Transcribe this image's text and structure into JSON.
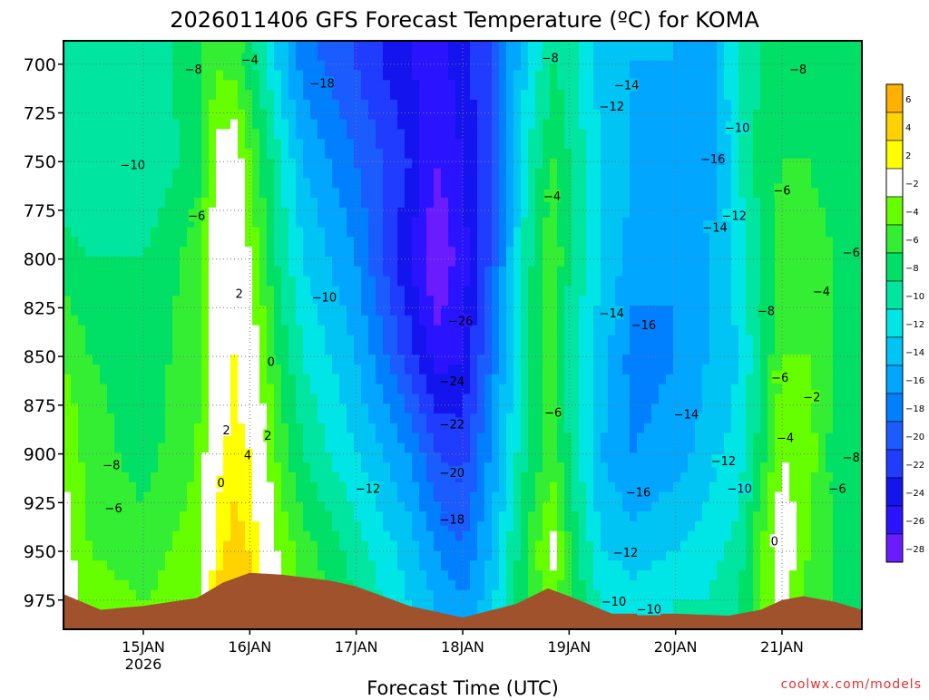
{
  "chart_data": {
    "type": "heatmap",
    "title": "2026011406 GFS Forecast Temperature (ºC) for KOMA",
    "xlabel": "Forecast Time (UTC)",
    "ylabel": "",
    "credit": "coolwx.com/models",
    "x_ticks": [
      {
        "label": "15JAN",
        "sublabel": "2026",
        "t": 15.0
      },
      {
        "label": "16JAN",
        "sublabel": "",
        "t": 16.0
      },
      {
        "label": "17JAN",
        "sublabel": "",
        "t": 17.0
      },
      {
        "label": "18JAN",
        "sublabel": "",
        "t": 18.0
      },
      {
        "label": "19JAN",
        "sublabel": "",
        "t": 19.0
      },
      {
        "label": "20JAN",
        "sublabel": "",
        "t": 20.0
      },
      {
        "label": "21JAN",
        "sublabel": "",
        "t": 21.0
      }
    ],
    "xlim": [
      14.25,
      21.75
    ],
    "y_ticks": [
      700,
      725,
      750,
      775,
      800,
      825,
      850,
      875,
      900,
      925,
      950,
      975
    ],
    "ylim": [
      688,
      990
    ],
    "y_reversed": true,
    "colorbar": {
      "levels": [
        6,
        4,
        2,
        -2,
        -4,
        -6,
        -8,
        -10,
        -12,
        -14,
        -16,
        -18,
        -20,
        -22,
        -24,
        -26,
        -28
      ],
      "colors": [
        "#ffb000",
        "#ffd200",
        "#ffff00",
        "#ffffff",
        "#66ff00",
        "#33ee33",
        "#00e066",
        "#00e6a0",
        "#00e6e6",
        "#00c4f4",
        "#00a6ff",
        "#0080ff",
        "#1a5cff",
        "#1f3cff",
        "#1414ee",
        "#2a14ff",
        "#6a1cff"
      ]
    },
    "temperature_columns": [
      {
        "t": 14.25,
        "p": [
          [
            700,
            -10
          ],
          [
            750,
            -10
          ],
          [
            800,
            -7
          ],
          [
            850,
            -4
          ],
          [
            900,
            -2
          ],
          [
            950,
            -1
          ],
          [
            975,
            0
          ]
        ]
      },
      {
        "t": 14.5,
        "p": [
          [
            700,
            -9
          ],
          [
            750,
            -10
          ],
          [
            800,
            -8
          ],
          [
            850,
            -6
          ],
          [
            900,
            -5
          ],
          [
            950,
            -4
          ],
          [
            975,
            -3
          ]
        ]
      },
      {
        "t": 15.0,
        "p": [
          [
            700,
            -9
          ],
          [
            750,
            -10
          ],
          [
            800,
            -8
          ],
          [
            850,
            -7
          ],
          [
            900,
            -7
          ],
          [
            950,
            -5
          ],
          [
            975,
            -4
          ]
        ]
      },
      {
        "t": 15.5,
        "p": [
          [
            700,
            -7
          ],
          [
            750,
            -7
          ],
          [
            800,
            -5
          ],
          [
            850,
            -5
          ],
          [
            900,
            -4
          ],
          [
            950,
            -3
          ],
          [
            975,
            -3
          ]
        ]
      },
      {
        "t": 15.7,
        "p": [
          [
            700,
            -4
          ],
          [
            750,
            -1
          ],
          [
            800,
            0
          ],
          [
            850,
            1
          ],
          [
            900,
            1
          ],
          [
            950,
            3
          ],
          [
            975,
            5
          ]
        ]
      },
      {
        "t": 15.85,
        "p": [
          [
            700,
            -5
          ],
          [
            750,
            0
          ],
          [
            800,
            2
          ],
          [
            850,
            2
          ],
          [
            900,
            3
          ],
          [
            950,
            5
          ],
          [
            975,
            6
          ]
        ]
      },
      {
        "t": 16.0,
        "p": [
          [
            700,
            -7
          ],
          [
            750,
            -4
          ],
          [
            800,
            -2
          ],
          [
            850,
            0
          ],
          [
            900,
            2
          ],
          [
            950,
            4
          ],
          [
            975,
            5
          ]
        ]
      },
      {
        "t": 16.25,
        "p": [
          [
            700,
            -12
          ],
          [
            750,
            -9
          ],
          [
            800,
            -8
          ],
          [
            850,
            -6
          ],
          [
            900,
            -4
          ],
          [
            950,
            -2
          ],
          [
            975,
            0
          ]
        ]
      },
      {
        "t": 16.5,
        "p": [
          [
            700,
            -17
          ],
          [
            750,
            -14
          ],
          [
            800,
            -12
          ],
          [
            850,
            -10
          ],
          [
            900,
            -8
          ],
          [
            950,
            -5
          ],
          [
            975,
            -4
          ]
        ]
      },
      {
        "t": 17.0,
        "p": [
          [
            700,
            -20
          ],
          [
            750,
            -18
          ],
          [
            800,
            -16
          ],
          [
            850,
            -14
          ],
          [
            900,
            -12
          ],
          [
            950,
            -9
          ],
          [
            975,
            -8
          ]
        ]
      },
      {
        "t": 17.5,
        "p": [
          [
            700,
            -24
          ],
          [
            750,
            -22
          ],
          [
            800,
            -24
          ],
          [
            850,
            -21
          ],
          [
            900,
            -16
          ],
          [
            950,
            -13
          ],
          [
            975,
            -12
          ]
        ]
      },
      {
        "t": 17.75,
        "p": [
          [
            700,
            -25
          ],
          [
            750,
            -26
          ],
          [
            800,
            -28
          ],
          [
            850,
            -25
          ],
          [
            900,
            -20
          ],
          [
            950,
            -16
          ],
          [
            975,
            -14
          ]
        ]
      },
      {
        "t": 18.0,
        "p": [
          [
            700,
            -23
          ],
          [
            750,
            -24
          ],
          [
            800,
            -25
          ],
          [
            850,
            -24
          ],
          [
            900,
            -21
          ],
          [
            950,
            -18
          ],
          [
            975,
            -16
          ]
        ]
      },
      {
        "t": 18.25,
        "p": [
          [
            700,
            -20
          ],
          [
            750,
            -20
          ],
          [
            800,
            -20
          ],
          [
            850,
            -18
          ],
          [
            900,
            -16
          ],
          [
            950,
            -14
          ],
          [
            975,
            -13
          ]
        ]
      },
      {
        "t": 18.6,
        "p": [
          [
            700,
            -12
          ],
          [
            750,
            -10
          ],
          [
            800,
            -9
          ],
          [
            850,
            -8
          ],
          [
            900,
            -8
          ],
          [
            950,
            -6
          ],
          [
            975,
            -6
          ]
        ]
      },
      {
        "t": 18.85,
        "p": [
          [
            700,
            -8
          ],
          [
            750,
            -6
          ],
          [
            800,
            -4
          ],
          [
            850,
            -5
          ],
          [
            900,
            -5
          ],
          [
            950,
            -1
          ],
          [
            975,
            -3
          ]
        ]
      },
      {
        "t": 19.0,
        "p": [
          [
            700,
            -9
          ],
          [
            750,
            -8
          ],
          [
            800,
            -8
          ],
          [
            850,
            -9
          ],
          [
            900,
            -8
          ],
          [
            950,
            -6
          ],
          [
            975,
            -6
          ]
        ]
      },
      {
        "t": 19.3,
        "p": [
          [
            700,
            -13
          ],
          [
            750,
            -12
          ],
          [
            800,
            -12
          ],
          [
            850,
            -13
          ],
          [
            900,
            -14
          ],
          [
            950,
            -12
          ],
          [
            975,
            -10
          ]
        ]
      },
      {
        "t": 19.6,
        "p": [
          [
            700,
            -14
          ],
          [
            750,
            -14
          ],
          [
            800,
            -15
          ],
          [
            850,
            -17
          ],
          [
            900,
            -16
          ],
          [
            950,
            -13
          ],
          [
            975,
            -11
          ]
        ]
      },
      {
        "t": 20.0,
        "p": [
          [
            700,
            -14
          ],
          [
            750,
            -15
          ],
          [
            800,
            -16
          ],
          [
            850,
            -16
          ],
          [
            900,
            -15
          ],
          [
            950,
            -12
          ],
          [
            975,
            -10
          ]
        ]
      },
      {
        "t": 20.3,
        "p": [
          [
            700,
            -15
          ],
          [
            750,
            -16
          ],
          [
            800,
            -14
          ],
          [
            850,
            -14
          ],
          [
            900,
            -13
          ],
          [
            950,
            -11
          ],
          [
            975,
            -10
          ]
        ]
      },
      {
        "t": 20.6,
        "p": [
          [
            700,
            -10
          ],
          [
            750,
            -10
          ],
          [
            800,
            -11
          ],
          [
            850,
            -12
          ],
          [
            900,
            -11
          ],
          [
            950,
            -9
          ],
          [
            975,
            -8
          ]
        ]
      },
      {
        "t": 20.8,
        "p": [
          [
            700,
            -8
          ],
          [
            750,
            -7
          ],
          [
            800,
            -8
          ],
          [
            850,
            -8
          ],
          [
            900,
            -7
          ],
          [
            950,
            -4
          ],
          [
            975,
            -4
          ]
        ]
      },
      {
        "t": 21.0,
        "p": [
          [
            700,
            -8
          ],
          [
            750,
            -6
          ],
          [
            800,
            -5
          ],
          [
            850,
            -4
          ],
          [
            900,
            -2
          ],
          [
            950,
            0
          ],
          [
            975,
            -1
          ]
        ]
      },
      {
        "t": 21.25,
        "p": [
          [
            700,
            -8
          ],
          [
            750,
            -6
          ],
          [
            800,
            -5
          ],
          [
            850,
            -4
          ],
          [
            900,
            -3
          ],
          [
            950,
            -4
          ],
          [
            975,
            -5
          ]
        ]
      },
      {
        "t": 21.5,
        "p": [
          [
            700,
            -8
          ],
          [
            750,
            -7
          ],
          [
            800,
            -6
          ],
          [
            850,
            -6
          ],
          [
            900,
            -7
          ],
          [
            950,
            -6
          ],
          [
            975,
            -6
          ]
        ]
      },
      {
        "t": 21.75,
        "p": [
          [
            700,
            -8
          ],
          [
            750,
            -8
          ],
          [
            800,
            -7
          ],
          [
            850,
            -7
          ],
          [
            900,
            -8
          ],
          [
            950,
            -7
          ],
          [
            975,
            -7
          ]
        ]
      }
    ],
    "terrain": {
      "color": "#a0522d",
      "surface": [
        [
          14.25,
          972
        ],
        [
          14.6,
          980
        ],
        [
          15.0,
          978
        ],
        [
          15.5,
          974
        ],
        [
          15.75,
          966
        ],
        [
          16.0,
          961
        ],
        [
          16.3,
          962
        ],
        [
          16.75,
          965
        ],
        [
          17.0,
          968
        ],
        [
          17.5,
          978
        ],
        [
          18.0,
          984
        ],
        [
          18.5,
          977
        ],
        [
          18.8,
          969
        ],
        [
          19.0,
          973
        ],
        [
          19.4,
          982
        ],
        [
          20.0,
          982
        ],
        [
          20.5,
          983
        ],
        [
          20.8,
          980
        ],
        [
          21.0,
          975
        ],
        [
          21.2,
          973
        ],
        [
          21.5,
          976
        ],
        [
          21.75,
          980
        ]
      ]
    },
    "contour_labels": [
      {
        "text": "-8",
        "t": 14.7,
        "p": 906
      },
      {
        "text": "-6",
        "t": 14.72,
        "p": 928
      },
      {
        "text": "-10",
        "t": 14.9,
        "p": 752
      },
      {
        "text": "-8",
        "t": 15.47,
        "p": 703
      },
      {
        "text": "-6",
        "t": 15.5,
        "p": 778
      },
      {
        "text": "-4",
        "t": 16.0,
        "p": 698
      },
      {
        "text": "-18",
        "t": 16.68,
        "p": 710
      },
      {
        "text": "-10",
        "t": 16.7,
        "p": 820
      },
      {
        "text": "2",
        "t": 15.9,
        "p": 818
      },
      {
        "text": "0",
        "t": 16.2,
        "p": 853
      },
      {
        "text": "2",
        "t": 15.78,
        "p": 888
      },
      {
        "text": "2",
        "t": 16.17,
        "p": 891
      },
      {
        "text": "4",
        "t": 15.98,
        "p": 901
      },
      {
        "text": "0",
        "t": 15.73,
        "p": 915
      },
      {
        "text": "-12",
        "t": 17.11,
        "p": 918
      },
      {
        "text": "-26",
        "t": 17.98,
        "p": 832
      },
      {
        "text": "-24",
        "t": 17.9,
        "p": 863
      },
      {
        "text": "-22",
        "t": 17.9,
        "p": 885
      },
      {
        "text": "-20",
        "t": 17.9,
        "p": 910
      },
      {
        "text": "-18",
        "t": 17.9,
        "p": 934
      },
      {
        "text": "-8",
        "t": 18.82,
        "p": 697
      },
      {
        "text": "-14",
        "t": 19.54,
        "p": 711
      },
      {
        "text": "-12",
        "t": 19.4,
        "p": 722
      },
      {
        "text": "-4",
        "t": 18.84,
        "p": 768
      },
      {
        "text": "-6",
        "t": 18.85,
        "p": 879
      },
      {
        "text": "-14",
        "t": 19.4,
        "p": 828
      },
      {
        "text": "-16",
        "t": 19.7,
        "p": 834
      },
      {
        "text": "-14",
        "t": 20.1,
        "p": 880
      },
      {
        "text": "-16",
        "t": 19.65,
        "p": 920
      },
      {
        "text": "-12",
        "t": 19.53,
        "p": 951
      },
      {
        "text": "-10",
        "t": 19.42,
        "p": 976
      },
      {
        "text": "-10",
        "t": 19.75,
        "p": 980
      },
      {
        "text": "-16",
        "t": 20.35,
        "p": 749
      },
      {
        "text": "-10",
        "t": 20.58,
        "p": 733
      },
      {
        "text": "-12",
        "t": 20.55,
        "p": 778
      },
      {
        "text": "-14",
        "t": 20.37,
        "p": 784
      },
      {
        "text": "-12",
        "t": 20.45,
        "p": 904
      },
      {
        "text": "-10",
        "t": 20.6,
        "p": 918
      },
      {
        "text": "-8",
        "t": 21.15,
        "p": 703
      },
      {
        "text": "-6",
        "t": 21.0,
        "p": 765
      },
      {
        "text": "-8",
        "t": 20.85,
        "p": 827
      },
      {
        "text": "-6",
        "t": 21.65,
        "p": 797
      },
      {
        "text": "-4",
        "t": 21.37,
        "p": 817
      },
      {
        "text": "-6",
        "t": 20.98,
        "p": 861
      },
      {
        "text": "-2",
        "t": 21.28,
        "p": 871
      },
      {
        "text": "-4",
        "t": 21.03,
        "p": 892
      },
      {
        "text": "-8",
        "t": 21.65,
        "p": 902
      },
      {
        "text": "-6",
        "t": 21.52,
        "p": 918
      },
      {
        "text": "0",
        "t": 20.93,
        "p": 945
      }
    ]
  }
}
